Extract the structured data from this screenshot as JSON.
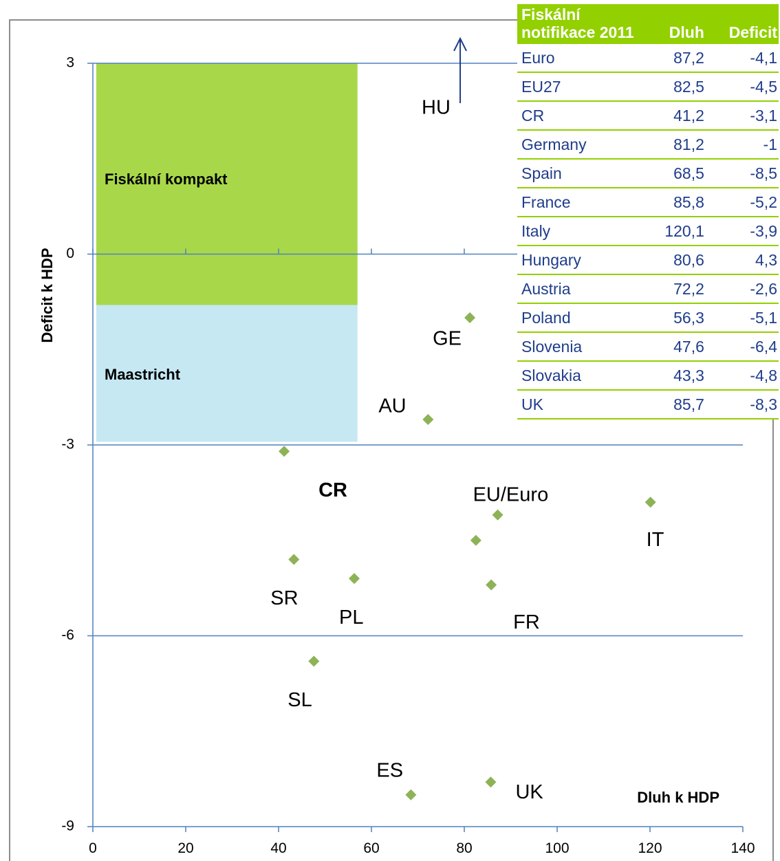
{
  "chart_data": {
    "type": "scatter",
    "xlabel": "Dluh k HDP",
    "ylabel": "Deficit k HDP",
    "xlim": [
      0,
      140
    ],
    "ylim": [
      -9,
      3
    ],
    "xticks": [
      "0",
      "20",
      "40",
      "60",
      "80",
      "100",
      "120",
      "140"
    ],
    "yticks": [
      "3",
      "0",
      "-3",
      "-6",
      "-9"
    ],
    "grid": "horizontal",
    "regions": [
      {
        "label": "Fiskální kompakt",
        "x": [
          0,
          57
        ],
        "y": [
          -0.8,
          3
        ],
        "color": "#a8d84a"
      },
      {
        "label": "Maastricht",
        "x": [
          0,
          57
        ],
        "y": [
          -2.95,
          -0.8
        ],
        "color": "#c5e8f3"
      }
    ],
    "points": [
      {
        "label": "CR",
        "x": 41.2,
        "y": -3.1,
        "bold": true
      },
      {
        "label": "GE",
        "x": 81.2,
        "y": -1.0
      },
      {
        "label": "AU",
        "x": 72.2,
        "y": -2.6
      },
      {
        "label": "EU/Euro",
        "x": 87.2,
        "y": -4.1
      },
      {
        "label": "",
        "x": 82.5,
        "y": -4.5
      },
      {
        "label": "IT",
        "x": 120.1,
        "y": -3.9
      },
      {
        "label": "SR",
        "x": 43.3,
        "y": -4.8
      },
      {
        "label": "PL",
        "x": 56.3,
        "y": -5.1
      },
      {
        "label": "FR",
        "x": 85.8,
        "y": -5.2
      },
      {
        "label": "SL",
        "x": 47.6,
        "y": -6.4
      },
      {
        "label": "ES",
        "x": 68.5,
        "y": -8.5
      },
      {
        "label": "UK",
        "x": 85.7,
        "y": -8.3
      }
    ],
    "arrow": {
      "label": "HU",
      "x": 80.6,
      "direction": "up"
    },
    "marker_color": "#8db356"
  },
  "table": {
    "header": [
      "Fiskální notifikace 2011",
      "Dluh",
      "Deficit"
    ],
    "rows": [
      [
        "Euro",
        "87,2",
        "-4,1"
      ],
      [
        "EU27",
        "82,5",
        "-4,5"
      ],
      [
        "CR",
        "41,2",
        "-3,1"
      ],
      [
        "Germany",
        "81,2",
        "-1"
      ],
      [
        "Spain",
        "68,5",
        "-8,5"
      ],
      [
        "France",
        "85,8",
        "-5,2"
      ],
      [
        "Italy",
        "120,1",
        "-3,9"
      ],
      [
        "Hungary",
        "80,6",
        "4,3"
      ],
      [
        "Austria",
        "72,2",
        "-2,6"
      ],
      [
        "Poland",
        "56,3",
        "-5,1"
      ],
      [
        "Slovenia",
        "47,6",
        "-6,4"
      ],
      [
        "Slovakia",
        "43,3",
        "-4,8"
      ],
      [
        "UK",
        "85,7",
        "-8,3"
      ]
    ],
    "header_color": "#92d000",
    "text_color": "#1f3d8a"
  }
}
